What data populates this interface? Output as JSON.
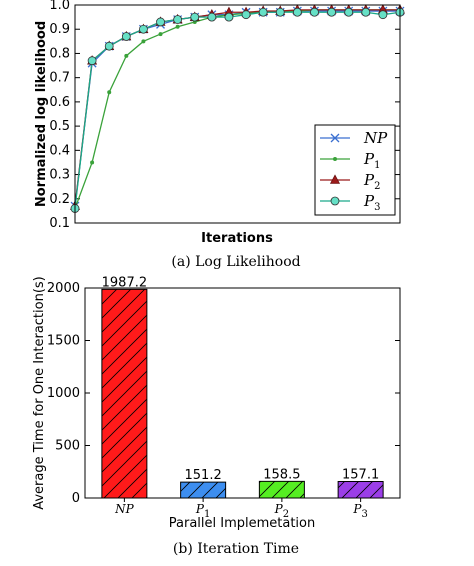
{
  "chart_data": [
    {
      "type": "line",
      "title": "",
      "caption": "(a) Log Likelihood",
      "xlabel": "Iterations",
      "ylabel": "Normalized log likelihood",
      "ylim": [
        0.1,
        1.0
      ],
      "yticks": [
        "0.1",
        "0.2",
        "0.3",
        "0.4",
        "0.5",
        "0.6",
        "0.7",
        "0.8",
        "0.9",
        "1.0"
      ],
      "x": [
        1,
        2,
        3,
        4,
        5,
        6,
        7,
        8,
        9,
        10,
        11,
        12,
        13,
        14,
        15,
        16,
        17,
        18,
        19,
        20
      ],
      "grid": false,
      "legend_position": "bottom-right",
      "series": [
        {
          "name": "NP",
          "label_main": "NP",
          "label_sub": "",
          "color": "#3a6fd0",
          "marker": "x",
          "values": [
            0.17,
            0.76,
            0.83,
            0.87,
            0.9,
            0.92,
            0.94,
            0.95,
            0.96,
            0.96,
            0.97,
            0.97,
            0.97,
            0.975,
            0.975,
            0.975,
            0.975,
            0.975,
            0.975,
            0.975
          ]
        },
        {
          "name": "P1",
          "label_main": "P",
          "label_sub": "1",
          "color": "#3aa23a",
          "marker": "dot",
          "values": [
            0.16,
            0.35,
            0.64,
            0.79,
            0.85,
            0.88,
            0.91,
            0.93,
            0.95,
            0.96,
            0.965,
            0.97,
            0.975,
            0.975,
            0.98,
            0.98,
            0.98,
            0.98,
            0.98,
            0.98
          ]
        },
        {
          "name": "P2",
          "label_main": "P",
          "label_sub": "2",
          "color": "#9b1b1b",
          "marker": "triangle",
          "values": [
            0.17,
            0.77,
            0.83,
            0.87,
            0.9,
            0.93,
            0.94,
            0.95,
            0.96,
            0.97,
            0.97,
            0.975,
            0.975,
            0.98,
            0.98,
            0.98,
            0.98,
            0.98,
            0.98,
            0.98
          ]
        },
        {
          "name": "P3",
          "label_main": "P",
          "label_sub": "3",
          "color": "#1aa98a",
          "fill": "#66e0c6",
          "marker": "circle",
          "values": [
            0.16,
            0.77,
            0.83,
            0.87,
            0.9,
            0.93,
            0.94,
            0.95,
            0.95,
            0.95,
            0.96,
            0.97,
            0.97,
            0.97,
            0.97,
            0.97,
            0.97,
            0.97,
            0.96,
            0.97
          ]
        }
      ]
    },
    {
      "type": "bar",
      "title": "",
      "caption": "(b) Iteration Time",
      "xlabel": "Parallel Implemetation",
      "ylabel": "Average Time for One Interaction(s)",
      "ylim": [
        0,
        2000
      ],
      "yticks": [
        "0",
        "500",
        "1000",
        "1500",
        "2000"
      ],
      "categories": [
        {
          "main": "NP",
          "sub": ""
        },
        {
          "main": "P",
          "sub": "1"
        },
        {
          "main": "P",
          "sub": "2"
        },
        {
          "main": "P",
          "sub": "3"
        }
      ],
      "values": [
        1987.2,
        151.2,
        158.5,
        157.1
      ],
      "value_labels": [
        "1987.2",
        "151.2",
        "158.5",
        "157.1"
      ],
      "colors": [
        "#ff1a1a",
        "#3d8ef0",
        "#55ee22",
        "#9b3ee8"
      ],
      "grid": false
    }
  ]
}
